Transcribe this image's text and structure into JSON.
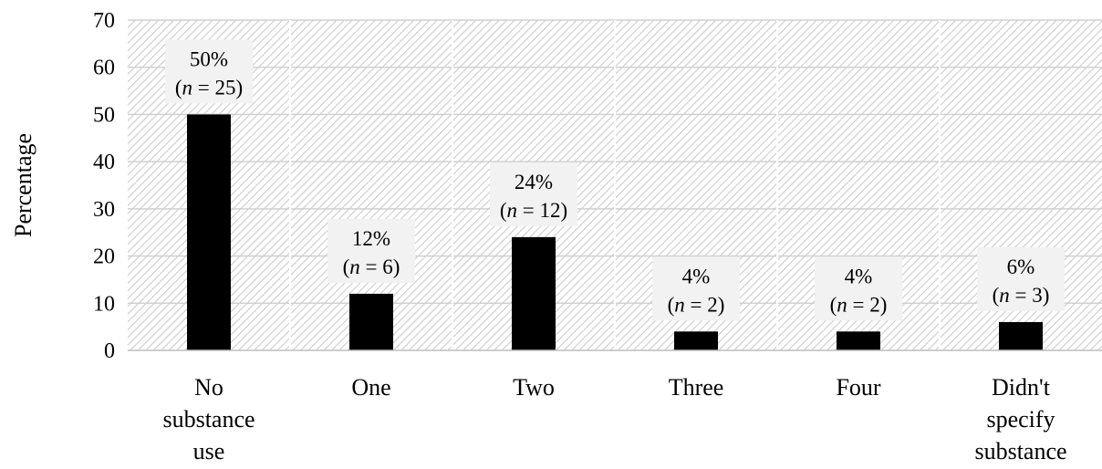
{
  "chart_data": {
    "type": "bar",
    "categories": [
      [
        "No",
        "substance",
        "use"
      ],
      [
        "One"
      ],
      [
        "Two"
      ],
      [
        "Three"
      ],
      [
        "Four"
      ],
      [
        "Didn't",
        "specify",
        "substance"
      ]
    ],
    "values": [
      50,
      12,
      24,
      4,
      4,
      6
    ],
    "data_labels": [
      {
        "pct": "50%",
        "n": "25"
      },
      {
        "pct": "12%",
        "n": "6"
      },
      {
        "pct": "24%",
        "n": "12"
      },
      {
        "pct": "4%",
        "n": "2"
      },
      {
        "pct": "4%",
        "n": "2"
      },
      {
        "pct": "6%",
        "n": "3"
      }
    ],
    "title": "",
    "xlabel": "",
    "ylabel": "Percentage",
    "ylim": [
      0,
      70
    ],
    "yticks": [
      0,
      10,
      20,
      30,
      40,
      50,
      60,
      70
    ],
    "grid": true,
    "background": "diagonal hatch",
    "bar_color": "#000000"
  }
}
